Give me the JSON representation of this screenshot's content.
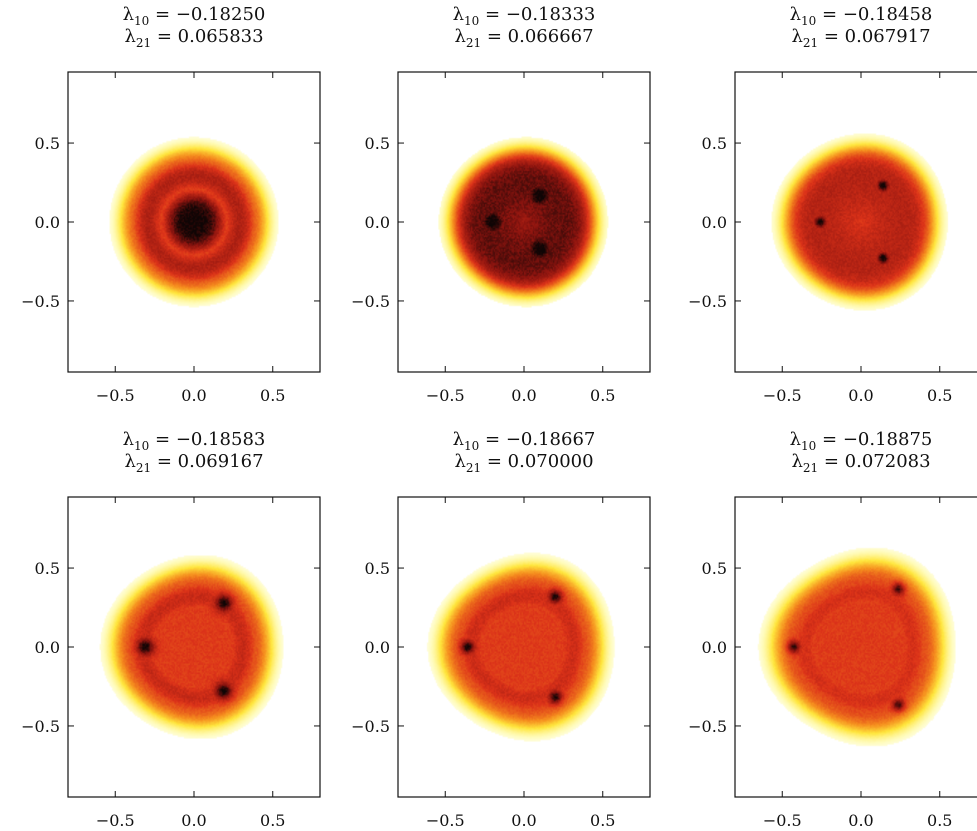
{
  "chart_data": [
    {
      "type": "heatmap",
      "title_lines": [
        {
          "sym": "λ",
          "sub": "10",
          "val": "−0.18250"
        },
        {
          "sym": "λ",
          "sub": "21",
          "val": "0.065833"
        }
      ],
      "xlim": [
        -0.8,
        0.8
      ],
      "ylim": [
        0.95,
        -0.95
      ],
      "xticks": [
        "−0.5",
        "0.0",
        "0.5"
      ],
      "yticks": [
        "−0.5",
        "0.0",
        "0.5"
      ],
      "radius": 0.48,
      "peaks": [],
      "core_radius": 0.2,
      "center_level": 0.97
    },
    {
      "type": "heatmap",
      "title_lines": [
        {
          "sym": "λ",
          "sub": "10",
          "val": "−0.18333"
        },
        {
          "sym": "λ",
          "sub": "21",
          "val": "0.066667"
        }
      ],
      "xlim": [
        -0.8,
        0.8
      ],
      "ylim": [
        0.95,
        -0.95
      ],
      "xticks": [
        "−0.5",
        "0.0",
        "0.5"
      ],
      "yticks": [
        "−0.5",
        "0.0",
        "0.5"
      ],
      "radius": 0.48,
      "peaks": [
        {
          "x": -0.2,
          "y": 0.0
        },
        {
          "x": 0.1,
          "y": -0.17
        },
        {
          "x": 0.1,
          "y": 0.17
        }
      ],
      "peak_size": 0.12,
      "center_level": 0.85
    },
    {
      "type": "heatmap",
      "title_lines": [
        {
          "sym": "λ",
          "sub": "10",
          "val": "−0.18458"
        },
        {
          "sym": "λ",
          "sub": "21",
          "val": "0.067917"
        }
      ],
      "xlim": [
        -0.8,
        0.8
      ],
      "ylim": [
        0.95,
        -0.95
      ],
      "xticks": [
        "−0.5",
        "0.0",
        "0.5"
      ],
      "yticks": [
        "−0.5",
        "0.0",
        "0.5"
      ],
      "radius": 0.5,
      "peaks": [
        {
          "x": -0.26,
          "y": 0.0
        },
        {
          "x": 0.14,
          "y": -0.23
        },
        {
          "x": 0.14,
          "y": 0.23
        }
      ],
      "peak_size": 0.05,
      "center_level": 0.72
    },
    {
      "type": "heatmap",
      "title_lines": [
        {
          "sym": "λ",
          "sub": "10",
          "val": "−0.18583"
        },
        {
          "sym": "λ",
          "sub": "21",
          "val": "0.069167"
        }
      ],
      "xlim": [
        -0.8,
        0.8
      ],
      "ylim": [
        0.95,
        -0.95
      ],
      "xticks": [
        "−0.5",
        "0.0",
        "0.5"
      ],
      "yticks": [
        "−0.5",
        "0.0",
        "0.5"
      ],
      "radius": 0.52,
      "peaks": [
        {
          "x": -0.31,
          "y": 0.0
        },
        {
          "x": 0.19,
          "y": -0.28
        },
        {
          "x": 0.19,
          "y": 0.28
        }
      ],
      "peak_size": 0.07,
      "center_level": 0.5
    },
    {
      "type": "heatmap",
      "title_lines": [
        {
          "sym": "λ",
          "sub": "10",
          "val": "−0.18667"
        },
        {
          "sym": "λ",
          "sub": "21",
          "val": "0.070000"
        }
      ],
      "xlim": [
        -0.8,
        0.8
      ],
      "ylim": [
        0.95,
        -0.95
      ],
      "xticks": [
        "−0.5",
        "0.0",
        "0.5"
      ],
      "yticks": [
        "−0.5",
        "0.0",
        "0.5"
      ],
      "radius": 0.53,
      "peaks": [
        {
          "x": -0.36,
          "y": 0.0
        },
        {
          "x": 0.2,
          "y": -0.32
        },
        {
          "x": 0.2,
          "y": 0.32
        }
      ],
      "peak_size": 0.055,
      "center_level": 0.38
    },
    {
      "type": "heatmap",
      "title_lines": [
        {
          "sym": "λ",
          "sub": "10",
          "val": "−0.18875"
        },
        {
          "sym": "λ",
          "sub": "21",
          "val": "0.072083"
        }
      ],
      "xlim": [
        -0.8,
        0.8
      ],
      "ylim": [
        0.95,
        -0.95
      ],
      "xticks": [
        "−0.5",
        "0.0",
        "0.5"
      ],
      "yticks": [
        "−0.5",
        "0.0",
        "0.5"
      ],
      "radius": 0.56,
      "peaks": [
        {
          "x": -0.43,
          "y": 0.0
        },
        {
          "x": 0.24,
          "y": -0.37
        },
        {
          "x": 0.24,
          "y": 0.37
        }
      ],
      "peak_size": 0.05,
      "center_level": 0.22
    }
  ]
}
